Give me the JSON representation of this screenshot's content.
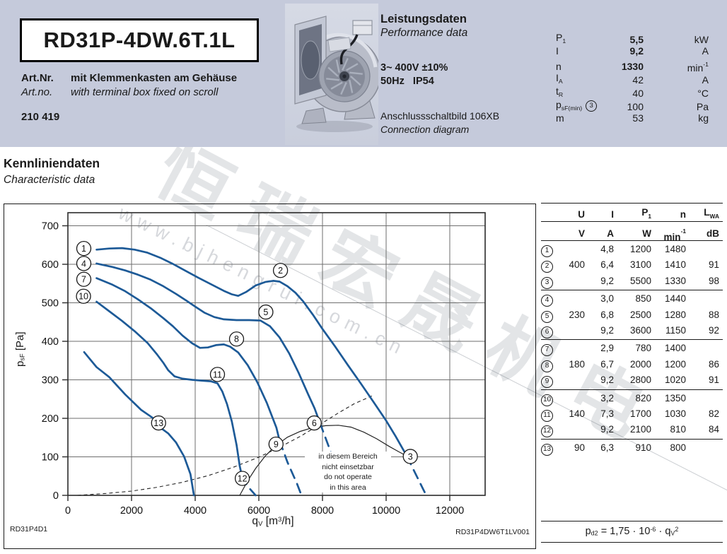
{
  "header": {
    "model": "RD31P-4DW.6T.1L",
    "art_label_de": "Art.Nr.",
    "art_label_en": "Art.no.",
    "art_desc_de": "mit Klemmenkasten am Gehäuse",
    "art_desc_en": "with terminal box fixed on scroll",
    "art_number": "210 419",
    "perf_title_de": "Leistungsdaten",
    "perf_title_en": "Performance data",
    "power_line1": "3~ 400V ±10%",
    "power_line2": "50Hz   IP54",
    "diagram_de": "Anschlussschaltbild 106XB",
    "diagram_en": "Connection diagram",
    "specs": [
      {
        "label": [
          {
            "t": "P"
          },
          {
            "t": "1",
            "sub": 1
          }
        ],
        "value": "5,5",
        "unit": [
          {
            "t": "kW"
          }
        ],
        "bold": true
      },
      {
        "label": [
          {
            "t": "I"
          }
        ],
        "value": "9,2",
        "unit": [
          {
            "t": "A"
          }
        ],
        "bold": true
      },
      {
        "label": [
          {
            "t": "n"
          }
        ],
        "value": "1330",
        "unit": [
          {
            "t": "min"
          },
          {
            "t": "-1",
            "sup": 1
          }
        ],
        "bold": true
      },
      {
        "label": [
          {
            "t": "I"
          },
          {
            "t": "A",
            "sub": 1
          }
        ],
        "value": "42",
        "unit": [
          {
            "t": "A"
          }
        ],
        "bold": false
      },
      {
        "label": [
          {
            "t": "t"
          },
          {
            "t": "R",
            "sub": 1
          }
        ],
        "value": "40",
        "unit": [
          {
            "t": "°C"
          }
        ],
        "bold": false
      },
      {
        "label": [
          {
            "t": "p"
          },
          {
            "t": "sF(min)",
            "sub": 1
          }
        ],
        "marker": "3",
        "value": "100",
        "unit": [
          {
            "t": "Pa"
          }
        ],
        "bold": false
      },
      {
        "label": [
          {
            "t": "m"
          }
        ],
        "value": "53",
        "unit": [
          {
            "t": "kg"
          }
        ],
        "bold": false
      }
    ]
  },
  "section": {
    "title_de": "Kennliniendaten",
    "title_en": "Characteristic data"
  },
  "chart_data": {
    "type": "line",
    "xlabel_rich": [
      {
        "t": "q"
      },
      {
        "t": "V",
        "sub": 1
      },
      {
        "t": " [m"
      },
      {
        "t": "3",
        "sup": 1
      },
      {
        "t": "/h]"
      }
    ],
    "ylabel_rich": [
      {
        "t": "p"
      },
      {
        "t": "sF",
        "sub": 1
      },
      {
        "t": " [Pa]"
      }
    ],
    "xlim": [
      0,
      12000
    ],
    "ylim": [
      0,
      700
    ],
    "grid": true,
    "xticks": [
      0,
      2000,
      4000,
      6000,
      8000,
      10000,
      12000
    ],
    "yticks": [
      0,
      100,
      200,
      300,
      400,
      500,
      600,
      700
    ],
    "curve_color": "#1d5a97",
    "series": [
      {
        "name": "curves 1-2-3 (400 V)",
        "solid": [
          [
            900,
            638
          ],
          [
            1300,
            641
          ],
          [
            1700,
            642
          ],
          [
            2100,
            638
          ],
          [
            2500,
            630
          ],
          [
            2900,
            617
          ],
          [
            3300,
            601
          ],
          [
            3700,
            583
          ],
          [
            4100,
            565
          ],
          [
            4500,
            548
          ],
          [
            4900,
            531
          ],
          [
            5150,
            522
          ],
          [
            5350,
            518
          ],
          [
            5600,
            528
          ],
          [
            5900,
            545
          ],
          [
            6200,
            554
          ],
          [
            6450,
            557
          ],
          [
            6650,
            555
          ],
          [
            6900,
            543
          ],
          [
            7150,
            526
          ],
          [
            7400,
            503
          ],
          [
            7700,
            469
          ],
          [
            8000,
            432
          ],
          [
            8400,
            386
          ],
          [
            8800,
            338
          ],
          [
            9200,
            291
          ],
          [
            9600,
            243
          ],
          [
            10000,
            194
          ],
          [
            10300,
            153
          ],
          [
            10650,
            102
          ]
        ],
        "dashed": [
          [
            10650,
            102
          ],
          [
            10900,
            60
          ],
          [
            11150,
            18
          ],
          [
            11260,
            0
          ]
        ]
      },
      {
        "name": "curves 4-5-6 (230 V)",
        "solid": [
          [
            900,
            602
          ],
          [
            1400,
            593
          ],
          [
            1800,
            584
          ],
          [
            2200,
            573
          ],
          [
            2600,
            560
          ],
          [
            3000,
            543
          ],
          [
            3400,
            523
          ],
          [
            3700,
            507
          ],
          [
            4000,
            490
          ],
          [
            4300,
            474
          ],
          [
            4600,
            463
          ],
          [
            4900,
            457
          ],
          [
            5300,
            455
          ],
          [
            5700,
            455
          ],
          [
            6050,
            454
          ],
          [
            6350,
            439
          ],
          [
            6650,
            410
          ],
          [
            6950,
            369
          ],
          [
            7250,
            318
          ],
          [
            7550,
            262
          ],
          [
            7750,
            226
          ],
          [
            7920,
            188
          ]
        ],
        "dashed": [
          [
            7920,
            188
          ],
          [
            8200,
            126
          ],
          [
            8500,
            58
          ],
          [
            8740,
            0
          ]
        ]
      },
      {
        "name": "curves 7-8-9 (180 V)",
        "solid": [
          [
            900,
            564
          ],
          [
            1400,
            547
          ],
          [
            1800,
            530
          ],
          [
            2200,
            509
          ],
          [
            2600,
            486
          ],
          [
            3000,
            460
          ],
          [
            3300,
            439
          ],
          [
            3600,
            415
          ],
          [
            3900,
            395
          ],
          [
            4150,
            383
          ],
          [
            4400,
            384
          ],
          [
            4650,
            390
          ],
          [
            4900,
            392
          ],
          [
            5100,
            386
          ],
          [
            5350,
            371
          ],
          [
            5650,
            338
          ],
          [
            5950,
            294
          ],
          [
            6250,
            240
          ],
          [
            6550,
            176
          ],
          [
            6650,
            142
          ]
        ],
        "dashed": [
          [
            6650,
            142
          ],
          [
            6900,
            86
          ],
          [
            7200,
            30
          ],
          [
            7340,
            0
          ]
        ]
      },
      {
        "name": "curves 10-11-12 (140 V)",
        "solid": [
          [
            900,
            503
          ],
          [
            1300,
            478
          ],
          [
            1700,
            453
          ],
          [
            2100,
            426
          ],
          [
            2500,
            396
          ],
          [
            2800,
            366
          ],
          [
            3000,
            344
          ],
          [
            3150,
            325
          ],
          [
            3350,
            309
          ],
          [
            3600,
            303
          ],
          [
            3900,
            300
          ],
          [
            4200,
            298
          ],
          [
            4500,
            296
          ],
          [
            4700,
            291
          ],
          [
            4850,
            270
          ],
          [
            5000,
            237
          ],
          [
            5150,
            192
          ],
          [
            5300,
            131
          ],
          [
            5400,
            76
          ],
          [
            5470,
            50
          ]
        ],
        "dashed": [
          [
            5470,
            50
          ],
          [
            5620,
            26
          ],
          [
            5900,
            0
          ]
        ]
      },
      {
        "name": "curve 13 (90 V)",
        "solid": [
          [
            510,
            372
          ],
          [
            900,
            333
          ],
          [
            1300,
            307
          ],
          [
            1800,
            262
          ],
          [
            2300,
            222
          ],
          [
            2600,
            205
          ],
          [
            2800,
            193
          ],
          [
            2950,
            173
          ],
          [
            3150,
            161
          ],
          [
            3400,
            137
          ],
          [
            3650,
            101
          ],
          [
            3850,
            55
          ],
          [
            3960,
            0
          ]
        ],
        "dashed": []
      }
    ],
    "aux": {
      "limit_curve": [
        [
          5400,
          0
        ],
        [
          5650,
          38
        ],
        [
          5900,
          70
        ],
        [
          6200,
          102
        ],
        [
          6500,
          127
        ],
        [
          6900,
          151
        ],
        [
          7300,
          166
        ],
        [
          7700,
          176
        ],
        [
          8100,
          181
        ],
        [
          8500,
          182
        ],
        [
          8900,
          177
        ],
        [
          9300,
          164
        ],
        [
          9700,
          147
        ],
        [
          10100,
          127
        ],
        [
          10400,
          113
        ],
        [
          10650,
          102
        ]
      ],
      "system_curve": [
        [
          300,
          0
        ],
        [
          1200,
          5
        ],
        [
          2000,
          11
        ],
        [
          2800,
          21
        ],
        [
          3600,
          34
        ],
        [
          4400,
          51
        ],
        [
          5200,
          73
        ],
        [
          6000,
          99
        ],
        [
          6700,
          127
        ],
        [
          7300,
          153
        ],
        [
          7900,
          183
        ],
        [
          8500,
          214
        ],
        [
          9000,
          238
        ],
        [
          9550,
          258
        ]
      ]
    },
    "point_labels": [
      {
        "n": "1",
        "x": 500,
        "y": 641
      },
      {
        "n": "4",
        "x": 500,
        "y": 602
      },
      {
        "n": "7",
        "x": 500,
        "y": 561
      },
      {
        "n": "10",
        "x": 490,
        "y": 517
      },
      {
        "n": "2",
        "x": 6680,
        "y": 584
      },
      {
        "n": "5",
        "x": 6220,
        "y": 476
      },
      {
        "n": "8",
        "x": 5300,
        "y": 406
      },
      {
        "n": "11",
        "x": 4700,
        "y": 314
      },
      {
        "n": "13",
        "x": 2850,
        "y": 188
      },
      {
        "n": "6",
        "x": 7740,
        "y": 188
      },
      {
        "n": "9",
        "x": 6540,
        "y": 133
      },
      {
        "n": "12",
        "x": 5480,
        "y": 44
      },
      {
        "n": "3",
        "x": 10760,
        "y": 101
      }
    ],
    "warning_lines": [
      "in diesem Bereich",
      "nicht einsetzbar",
      "do not operate",
      "in this area"
    ],
    "footnote_left": "RD31P4D1",
    "footnote_right": "RD31P4DW6T1LV001"
  },
  "table": {
    "headers": [
      [
        {
          "t": "U"
        }
      ],
      [
        {
          "t": "I"
        }
      ],
      [
        {
          "t": "P"
        },
        {
          "t": "1",
          "sub": 1
        }
      ],
      [
        {
          "t": "n"
        }
      ],
      [
        {
          "t": "L"
        },
        {
          "t": "WA",
          "sub": 1
        }
      ]
    ],
    "units": [
      [
        {
          "t": "V"
        }
      ],
      [
        {
          "t": "A"
        }
      ],
      [
        {
          "t": "W"
        }
      ],
      [
        {
          "t": "min"
        },
        {
          "t": "-1",
          "sup": 1
        }
      ],
      [
        {
          "t": "dB"
        }
      ]
    ],
    "groups": [
      [
        {
          "n": "1",
          "u": "",
          "i": "4,8",
          "p": "1200",
          "rpm": "1480",
          "lwa": ""
        },
        {
          "n": "2",
          "u": "400",
          "i": "6,4",
          "p": "3100",
          "rpm": "1410",
          "lwa": "91"
        },
        {
          "n": "3",
          "u": "",
          "i": "9,2",
          "p": "5500",
          "rpm": "1330",
          "lwa": "98"
        }
      ],
      [
        {
          "n": "4",
          "u": "",
          "i": "3,0",
          "p": "850",
          "rpm": "1440",
          "lwa": ""
        },
        {
          "n": "5",
          "u": "230",
          "i": "6,8",
          "p": "2500",
          "rpm": "1280",
          "lwa": "88"
        },
        {
          "n": "6",
          "u": "",
          "i": "9,2",
          "p": "3600",
          "rpm": "1150",
          "lwa": "92"
        }
      ],
      [
        {
          "n": "7",
          "u": "",
          "i": "2,9",
          "p": "780",
          "rpm": "1400",
          "lwa": ""
        },
        {
          "n": "8",
          "u": "180",
          "i": "6,7",
          "p": "2000",
          "rpm": "1200",
          "lwa": "86"
        },
        {
          "n": "9",
          "u": "",
          "i": "9,2",
          "p": "2800",
          "rpm": "1020",
          "lwa": "91"
        }
      ],
      [
        {
          "n": "10",
          "u": "",
          "i": "3,2",
          "p": "820",
          "rpm": "1350",
          "lwa": ""
        },
        {
          "n": "11",
          "u": "140",
          "i": "7,3",
          "p": "1700",
          "rpm": "1030",
          "lwa": "82"
        },
        {
          "n": "12",
          "u": "",
          "i": "9,2",
          "p": "2100",
          "rpm": "810",
          "lwa": "84"
        }
      ],
      [
        {
          "n": "13",
          "u": "90",
          "i": "6,3",
          "p": "910",
          "rpm": "800",
          "lwa": ""
        }
      ]
    ],
    "formula": [
      {
        "t": "p"
      },
      {
        "t": "d2",
        "sub": 1
      },
      {
        "t": " = 1,75 · 10"
      },
      {
        "t": "-6",
        "sup": 1
      },
      {
        "t": " · q"
      },
      {
        "t": "V",
        "sub": 1
      },
      {
        "t": "2",
        "sup": 1
      }
    ]
  },
  "watermark": {
    "cjk": "恒瑞宏晟机电",
    "url": "www.bjhengrui.com.cn"
  },
  "colors": {
    "band": "#c5cadb",
    "curve_blue": "#1d5a97"
  }
}
